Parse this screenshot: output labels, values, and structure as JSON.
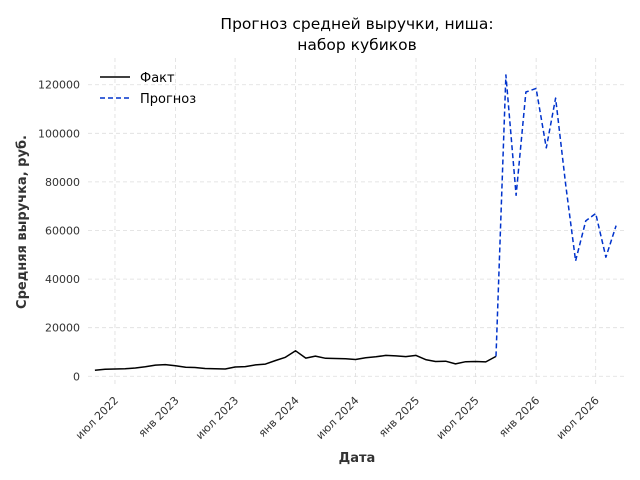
{
  "chart_data": {
    "type": "line",
    "title_lines": [
      "Прогноз средней выручки, ниша:",
      "набор кубиков"
    ],
    "xlabel": "Дата",
    "ylabel": "Средняя выручка, руб.",
    "ylim": [
      -4000,
      131000
    ],
    "yticks": [
      0,
      20000,
      40000,
      60000,
      80000,
      100000,
      120000
    ],
    "xlim": [
      "2022-04-10",
      "2026-09-25"
    ],
    "xticks": [
      {
        "date": "2022-07-01",
        "label": "июл 2022"
      },
      {
        "date": "2023-01-01",
        "label": "янв 2023"
      },
      {
        "date": "2023-07-01",
        "label": "июл 2023"
      },
      {
        "date": "2024-01-01",
        "label": "янв 2024"
      },
      {
        "date": "2024-07-01",
        "label": "июл 2024"
      },
      {
        "date": "2025-01-01",
        "label": "янв 2025"
      },
      {
        "date": "2025-07-01",
        "label": "июл 2025"
      },
      {
        "date": "2026-01-01",
        "label": "янв 2026"
      },
      {
        "date": "2026-07-01",
        "label": "июл 2026"
      }
    ],
    "grid": true,
    "legend_position": "top-left",
    "series": [
      {
        "name": "Факт",
        "color": "#000000",
        "style": "solid",
        "points": [
          [
            "2022-05-01",
            2500
          ],
          [
            "2022-06-01",
            2900
          ],
          [
            "2022-07-01",
            3000
          ],
          [
            "2022-08-01",
            3100
          ],
          [
            "2022-09-01",
            3400
          ],
          [
            "2022-10-01",
            3900
          ],
          [
            "2022-11-01",
            4600
          ],
          [
            "2022-12-01",
            4800
          ],
          [
            "2023-01-01",
            4300
          ],
          [
            "2023-02-01",
            3700
          ],
          [
            "2023-03-01",
            3600
          ],
          [
            "2023-04-01",
            3200
          ],
          [
            "2023-05-01",
            3100
          ],
          [
            "2023-06-01",
            3000
          ],
          [
            "2023-07-01",
            3800
          ],
          [
            "2023-08-01",
            4000
          ],
          [
            "2023-09-01",
            4700
          ],
          [
            "2023-10-01",
            5000
          ],
          [
            "2023-11-01",
            6500
          ],
          [
            "2023-12-01",
            7800
          ],
          [
            "2024-01-01",
            10500
          ],
          [
            "2024-02-01",
            7500
          ],
          [
            "2024-03-01",
            8300
          ],
          [
            "2024-04-01",
            7400
          ],
          [
            "2024-05-01",
            7300
          ],
          [
            "2024-06-01",
            7200
          ],
          [
            "2024-07-01",
            6900
          ],
          [
            "2024-08-01",
            7600
          ],
          [
            "2024-09-01",
            8000
          ],
          [
            "2024-10-01",
            8600
          ],
          [
            "2024-11-01",
            8400
          ],
          [
            "2024-12-01",
            8100
          ],
          [
            "2025-01-01",
            8600
          ],
          [
            "2025-02-01",
            6800
          ],
          [
            "2025-03-01",
            6100
          ],
          [
            "2025-04-01",
            6200
          ],
          [
            "2025-05-01",
            5100
          ],
          [
            "2025-06-01",
            6000
          ],
          [
            "2025-07-01",
            6100
          ],
          [
            "2025-08-01",
            5900
          ],
          [
            "2025-09-01",
            8200
          ]
        ]
      },
      {
        "name": "Прогноз",
        "color": "#0033cc",
        "style": "dashed",
        "points": [
          [
            "2025-09-01",
            8200
          ],
          [
            "2025-10-01",
            124000
          ],
          [
            "2025-11-01",
            74500
          ],
          [
            "2025-12-01",
            117000
          ],
          [
            "2026-01-01",
            118500
          ],
          [
            "2026-02-01",
            94000
          ],
          [
            "2026-03-01",
            114500
          ],
          [
            "2026-04-01",
            78500
          ],
          [
            "2026-05-01",
            47500
          ],
          [
            "2026-06-01",
            64000
          ],
          [
            "2026-07-01",
            67000
          ],
          [
            "2026-08-01",
            49000
          ],
          [
            "2026-09-01",
            62000
          ]
        ]
      }
    ]
  }
}
